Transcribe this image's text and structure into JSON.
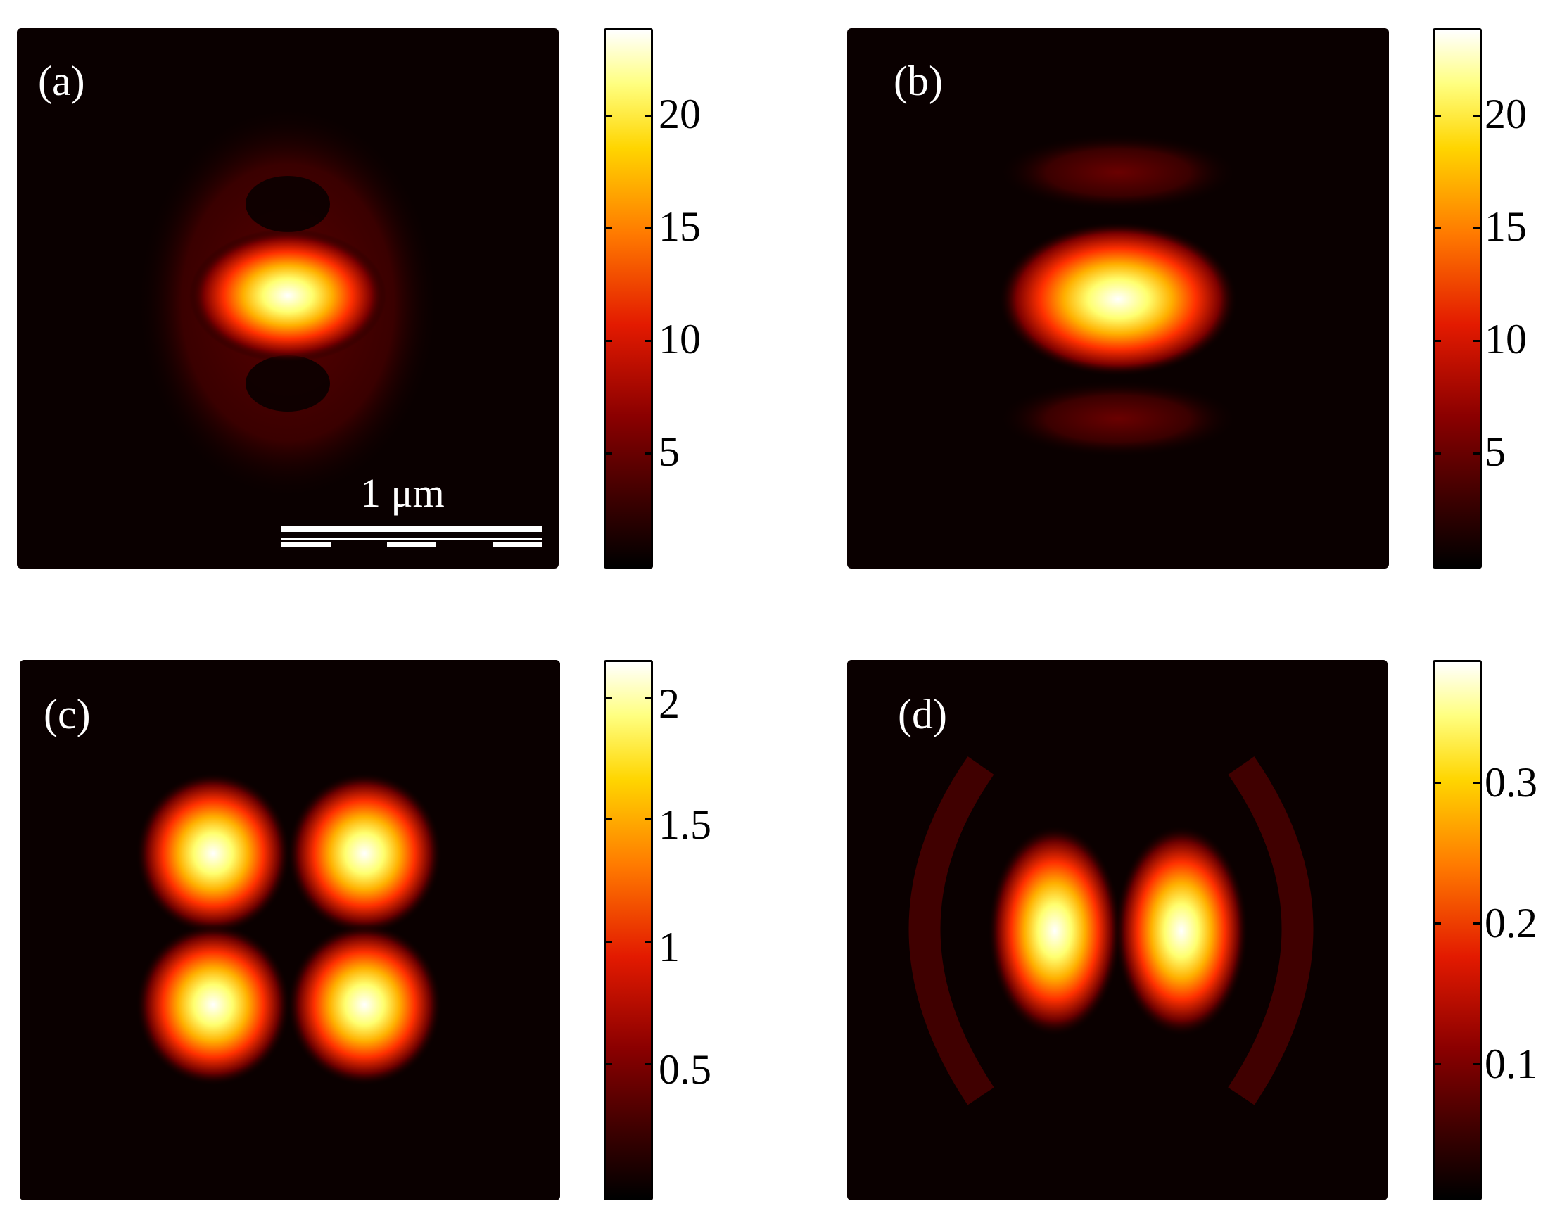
{
  "chart_data": [
    {
      "type": "heatmap",
      "panel_label": "(a)",
      "colormap": "hot",
      "colorbar": {
        "ticks": [
          5,
          10,
          15,
          20
        ],
        "max": 24
      },
      "scale_bar": "1 μm",
      "features": [
        "central horizontal ellipse (peak)",
        "two faint outer lobes above and below"
      ]
    },
    {
      "type": "heatmap",
      "panel_label": "(b)",
      "colormap": "hot",
      "colorbar": {
        "ticks": [
          5,
          10,
          15,
          20
        ],
        "max": 24
      },
      "features": [
        "central horizontal ellipse (peak)",
        "two faint side bands above and below"
      ]
    },
    {
      "type": "heatmap",
      "panel_label": "(c)",
      "colormap": "hot",
      "colorbar": {
        "ticks": [
          0.5,
          1,
          1.5,
          2
        ],
        "max": 2.15
      },
      "features": [
        "four-lobe pattern (2x2)"
      ]
    },
    {
      "type": "heatmap",
      "panel_label": "(d)",
      "colormap": "hot",
      "colorbar": {
        "ticks": [
          0.1,
          0.2,
          0.3
        ],
        "max": 0.38
      },
      "features": [
        "two vertical lobes",
        "faint outer arcs left and right"
      ]
    }
  ],
  "colors": {
    "hot_low": "#000000",
    "hot_mid": "#e31a00",
    "hot_high": "#ffffff"
  }
}
